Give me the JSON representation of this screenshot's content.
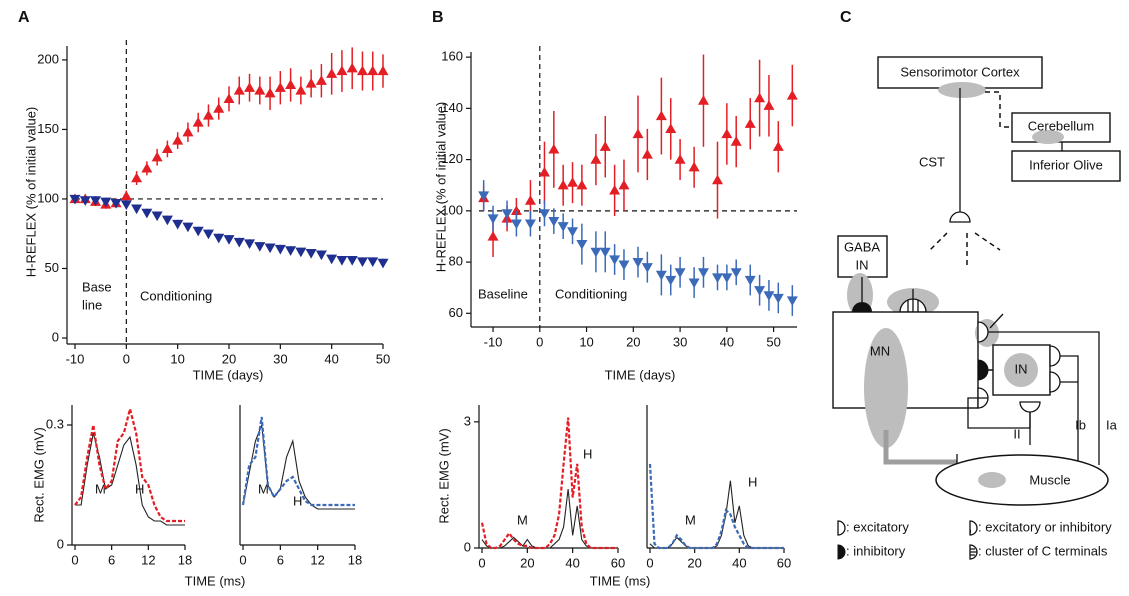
{
  "panel_labels": [
    "A",
    "B",
    "C"
  ],
  "chart_data": [
    {
      "type": "scatter",
      "ylabel": "H-REFLEX (% of initial value)",
      "xlabel": "TIME (days)",
      "xlim": [
        -10,
        50
      ],
      "ylim": [
        0,
        210
      ],
      "xticks": [
        -10,
        0,
        10,
        20,
        30,
        40,
        50
      ],
      "yticks": [
        0,
        50,
        100,
        150,
        200
      ],
      "hline": 100,
      "vline": 0,
      "annotations": [
        "Base",
        "line",
        "Conditioning"
      ],
      "x": [
        -10,
        -8,
        -6,
        -4,
        -2,
        0,
        2,
        4,
        6,
        8,
        10,
        12,
        14,
        16,
        18,
        20,
        22,
        24,
        26,
        28,
        30,
        32,
        34,
        36,
        38,
        40,
        42,
        44,
        46,
        48,
        50
      ],
      "series": [
        {
          "marker": "triangle-up",
          "color": "#e31e24",
          "values": [
            100,
            100,
            98,
            96,
            97,
            102,
            115,
            122,
            130,
            136,
            142,
            148,
            155,
            160,
            165,
            172,
            178,
            180,
            178,
            176,
            180,
            182,
            178,
            183,
            185,
            190,
            192,
            194,
            192,
            192,
            192
          ],
          "errors": [
            3,
            3,
            3,
            3,
            3,
            4,
            5,
            5,
            6,
            6,
            6,
            7,
            7,
            8,
            8,
            9,
            10,
            10,
            10,
            12,
            12,
            12,
            10,
            10,
            12,
            15,
            15,
            15,
            14,
            14,
            12
          ]
        },
        {
          "marker": "triangle-down",
          "color": "#1f2f8f",
          "values": [
            100,
            99,
            99,
            98,
            97,
            96,
            93,
            90,
            88,
            85,
            82,
            80,
            77,
            75,
            72,
            71,
            69,
            68,
            66,
            65,
            64,
            63,
            62,
            61,
            60,
            57,
            56,
            56,
            55,
            55,
            54
          ],
          "errors": [
            3,
            3,
            3,
            3,
            3,
            3,
            3,
            3,
            3,
            3,
            3,
            3,
            3,
            3,
            3,
            3,
            3,
            3,
            3,
            3,
            3,
            3,
            3,
            3,
            3,
            3,
            3,
            3,
            3,
            3,
            3
          ]
        }
      ]
    },
    {
      "type": "line",
      "ylabel": "Rect. EMG (mV)",
      "xlabel": "TIME (ms)",
      "xlim": [
        0,
        18
      ],
      "ylim": [
        0,
        0.35
      ],
      "xticks": [
        0,
        6,
        12,
        18
      ],
      "yticks": [
        0,
        0.3
      ],
      "annotations": [
        "M",
        "H"
      ],
      "x": [
        0,
        1,
        2,
        3,
        4,
        5,
        6,
        7,
        8,
        9,
        10,
        11,
        12,
        13,
        14,
        15,
        16,
        17,
        18
      ],
      "series": [
        {
          "color": "#222222",
          "dashed": false,
          "values": [
            0.1,
            0.1,
            0.2,
            0.28,
            0.22,
            0.14,
            0.15,
            0.2,
            0.25,
            0.27,
            0.2,
            0.1,
            0.07,
            0.06,
            0.06,
            0.05,
            0.05,
            0.05,
            0.05
          ]
        },
        {
          "color": "#e31e24",
          "dashed": true,
          "values": [
            0.1,
            0.12,
            0.22,
            0.3,
            0.2,
            0.14,
            0.16,
            0.26,
            0.28,
            0.34,
            0.28,
            0.17,
            0.15,
            0.1,
            0.07,
            0.06,
            0.06,
            0.06,
            0.06
          ]
        }
      ]
    },
    {
      "type": "line",
      "xlim": [
        0,
        18
      ],
      "ylim": [
        0,
        0.35
      ],
      "xticks": [
        0,
        6,
        12,
        18
      ],
      "annotations": [
        "M",
        "H"
      ],
      "x": [
        0,
        1,
        2,
        3,
        4,
        5,
        6,
        7,
        8,
        9,
        10,
        11,
        12,
        13,
        14,
        15,
        16,
        17,
        18
      ],
      "series": [
        {
          "color": "#222222",
          "dashed": false,
          "values": [
            0.1,
            0.18,
            0.26,
            0.3,
            0.15,
            0.12,
            0.14,
            0.22,
            0.26,
            0.16,
            0.12,
            0.1,
            0.09,
            0.09,
            0.09,
            0.09,
            0.09,
            0.09,
            0.09
          ]
        },
        {
          "color": "#3b6ab8",
          "dashed": true,
          "values": [
            0.1,
            0.2,
            0.22,
            0.32,
            0.15,
            0.12,
            0.14,
            0.16,
            0.17,
            0.14,
            0.11,
            0.1,
            0.1,
            0.1,
            0.1,
            0.1,
            0.1,
            0.1,
            0.1
          ]
        }
      ]
    },
    {
      "type": "scatter",
      "ylabel": "H-REFLEX (% of initial value)",
      "xlabel": "TIME (days)",
      "xlim": [
        -13,
        55
      ],
      "ylim": [
        57,
        162
      ],
      "xticks": [
        -10,
        0,
        10,
        20,
        30,
        40,
        50
      ],
      "yticks": [
        60,
        80,
        100,
        120,
        140,
        160
      ],
      "hline": 100,
      "vline": 0,
      "annotations": [
        "Baseline",
        "Conditioning"
      ],
      "x": [
        -12,
        -10,
        -7,
        -5,
        -2,
        1,
        3,
        5,
        7,
        9,
        12,
        14,
        16,
        18,
        21,
        23,
        26,
        28,
        30,
        33,
        35,
        38,
        40,
        42,
        45,
        47,
        49,
        51,
        54
      ],
      "series": [
        {
          "marker": "triangle-up",
          "color": "#e31e24",
          "values": [
            105,
            90,
            97,
            100,
            104,
            115,
            124,
            110,
            111,
            110,
            120,
            125,
            108,
            110,
            130,
            122,
            137,
            132,
            120,
            117,
            143,
            112,
            130,
            127,
            134,
            144,
            141,
            125,
            145
          ],
          "errors": [
            5,
            8,
            5,
            5,
            8,
            12,
            15,
            8,
            8,
            8,
            10,
            12,
            10,
            10,
            15,
            10,
            15,
            12,
            8,
            8,
            18,
            15,
            12,
            10,
            10,
            15,
            12,
            10,
            12
          ]
        },
        {
          "marker": "triangle-down",
          "color": "#3b6ab8",
          "values": [
            106,
            97,
            99,
            95,
            95,
            99,
            96,
            94,
            92,
            87,
            84,
            84,
            81,
            79,
            80,
            78,
            75,
            73,
            76,
            72,
            76,
            74,
            74,
            76,
            73,
            69,
            67,
            66,
            65
          ],
          "errors": [
            6,
            5,
            5,
            5,
            5,
            5,
            5,
            5,
            5,
            8,
            8,
            8,
            6,
            6,
            6,
            6,
            8,
            6,
            6,
            6,
            6,
            5,
            5,
            5,
            6,
            6,
            6,
            6,
            6
          ]
        }
      ]
    },
    {
      "type": "line",
      "ylabel": "Rect. EMG (mV)",
      "xlabel": "TIME (ms)",
      "xlim": [
        0,
        60
      ],
      "ylim": [
        0,
        3.4
      ],
      "xticks": [
        0,
        20,
        40,
        60
      ],
      "yticks": [
        0,
        3
      ],
      "annotations": [
        "M",
        "H"
      ],
      "x": [
        0,
        2,
        4,
        6,
        8,
        10,
        12,
        14,
        16,
        18,
        20,
        22,
        24,
        26,
        28,
        30,
        32,
        34,
        36,
        38,
        40,
        42,
        44,
        46,
        48,
        50,
        52,
        54,
        56,
        58,
        60
      ],
      "series": [
        {
          "color": "#222222",
          "dashed": false,
          "values": [
            0.2,
            0.05,
            0,
            0,
            0,
            0.05,
            0.15,
            0.25,
            0.15,
            0.05,
            0.2,
            0.05,
            0,
            0,
            0,
            0,
            0.1,
            0.2,
            0.5,
            1.4,
            0.3,
            1.0,
            0.2,
            0.05,
            0,
            0,
            0,
            0,
            0,
            0,
            0
          ]
        },
        {
          "color": "#e31e24",
          "dashed": true,
          "values": [
            0.6,
            0.1,
            0,
            0,
            0.05,
            0.2,
            0.35,
            0.2,
            0.1,
            0.05,
            0.05,
            0,
            0,
            0,
            0,
            0.1,
            0.3,
            0.8,
            2.0,
            3.1,
            1.2,
            2.0,
            0.5,
            0.1,
            0,
            0,
            0,
            0,
            0,
            0,
            0
          ]
        }
      ]
    },
    {
      "type": "line",
      "xlim": [
        0,
        60
      ],
      "ylim": [
        0,
        3.4
      ],
      "xticks": [
        0,
        20,
        40,
        60
      ],
      "annotations": [
        "M",
        "H"
      ],
      "x": [
        0,
        2,
        4,
        6,
        8,
        10,
        12,
        14,
        16,
        18,
        20,
        22,
        24,
        26,
        28,
        30,
        32,
        34,
        36,
        38,
        40,
        42,
        44,
        46,
        48,
        50,
        52,
        54,
        56,
        58,
        60
      ],
      "series": [
        {
          "color": "#222222",
          "dashed": false,
          "values": [
            0.1,
            0,
            0,
            0,
            0,
            0.1,
            0.25,
            0.15,
            0.05,
            0,
            0,
            0,
            0,
            0,
            0,
            0.05,
            0.3,
            0.8,
            1.6,
            0.6,
            1.0,
            0.3,
            0.05,
            0,
            0,
            0,
            0,
            0,
            0,
            0,
            0
          ]
        },
        {
          "color": "#3b6ab8",
          "dashed": true,
          "values": [
            2.0,
            0.1,
            0,
            0,
            0,
            0.1,
            0.3,
            0.2,
            0.05,
            0,
            0,
            0,
            0,
            0,
            0,
            0.1,
            0.4,
            0.9,
            0.8,
            0.5,
            0.3,
            0.1,
            0,
            0,
            0,
            0,
            0,
            0,
            0,
            0,
            0
          ]
        }
      ]
    }
  ],
  "diagram": {
    "labels": [
      "Sensorimotor Cortex",
      "Cerebellum",
      "Inferior Olive",
      "CST",
      "GABA",
      "IN",
      "MN",
      "IN",
      "II",
      "Ib",
      "Ia",
      "Muscle"
    ],
    "legend": [
      ": excitatory",
      ": excitatory or inhibitory",
      ": inhibitory",
      ": cluster of C terminals"
    ]
  }
}
